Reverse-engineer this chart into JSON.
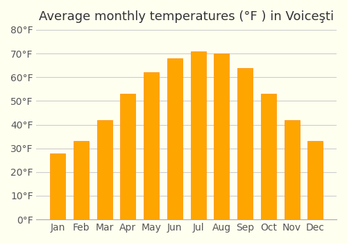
{
  "title": "Average monthly temperatures (°F ) in Voiceşti",
  "months": [
    "Jan",
    "Feb",
    "Mar",
    "Apr",
    "May",
    "Jun",
    "Jul",
    "Aug",
    "Sep",
    "Oct",
    "Nov",
    "Dec"
  ],
  "values": [
    28,
    33,
    42,
    53,
    62,
    68,
    71,
    70,
    64,
    53,
    42,
    33
  ],
  "bar_color": "#FFA500",
  "bar_color_dark": "#FF8C00",
  "background_color": "#FFFFF0",
  "grid_color": "#CCCCCC",
  "ylim": [
    0,
    80
  ],
  "yticks": [
    0,
    10,
    20,
    30,
    40,
    50,
    60,
    70,
    80
  ],
  "title_fontsize": 13,
  "tick_fontsize": 10
}
